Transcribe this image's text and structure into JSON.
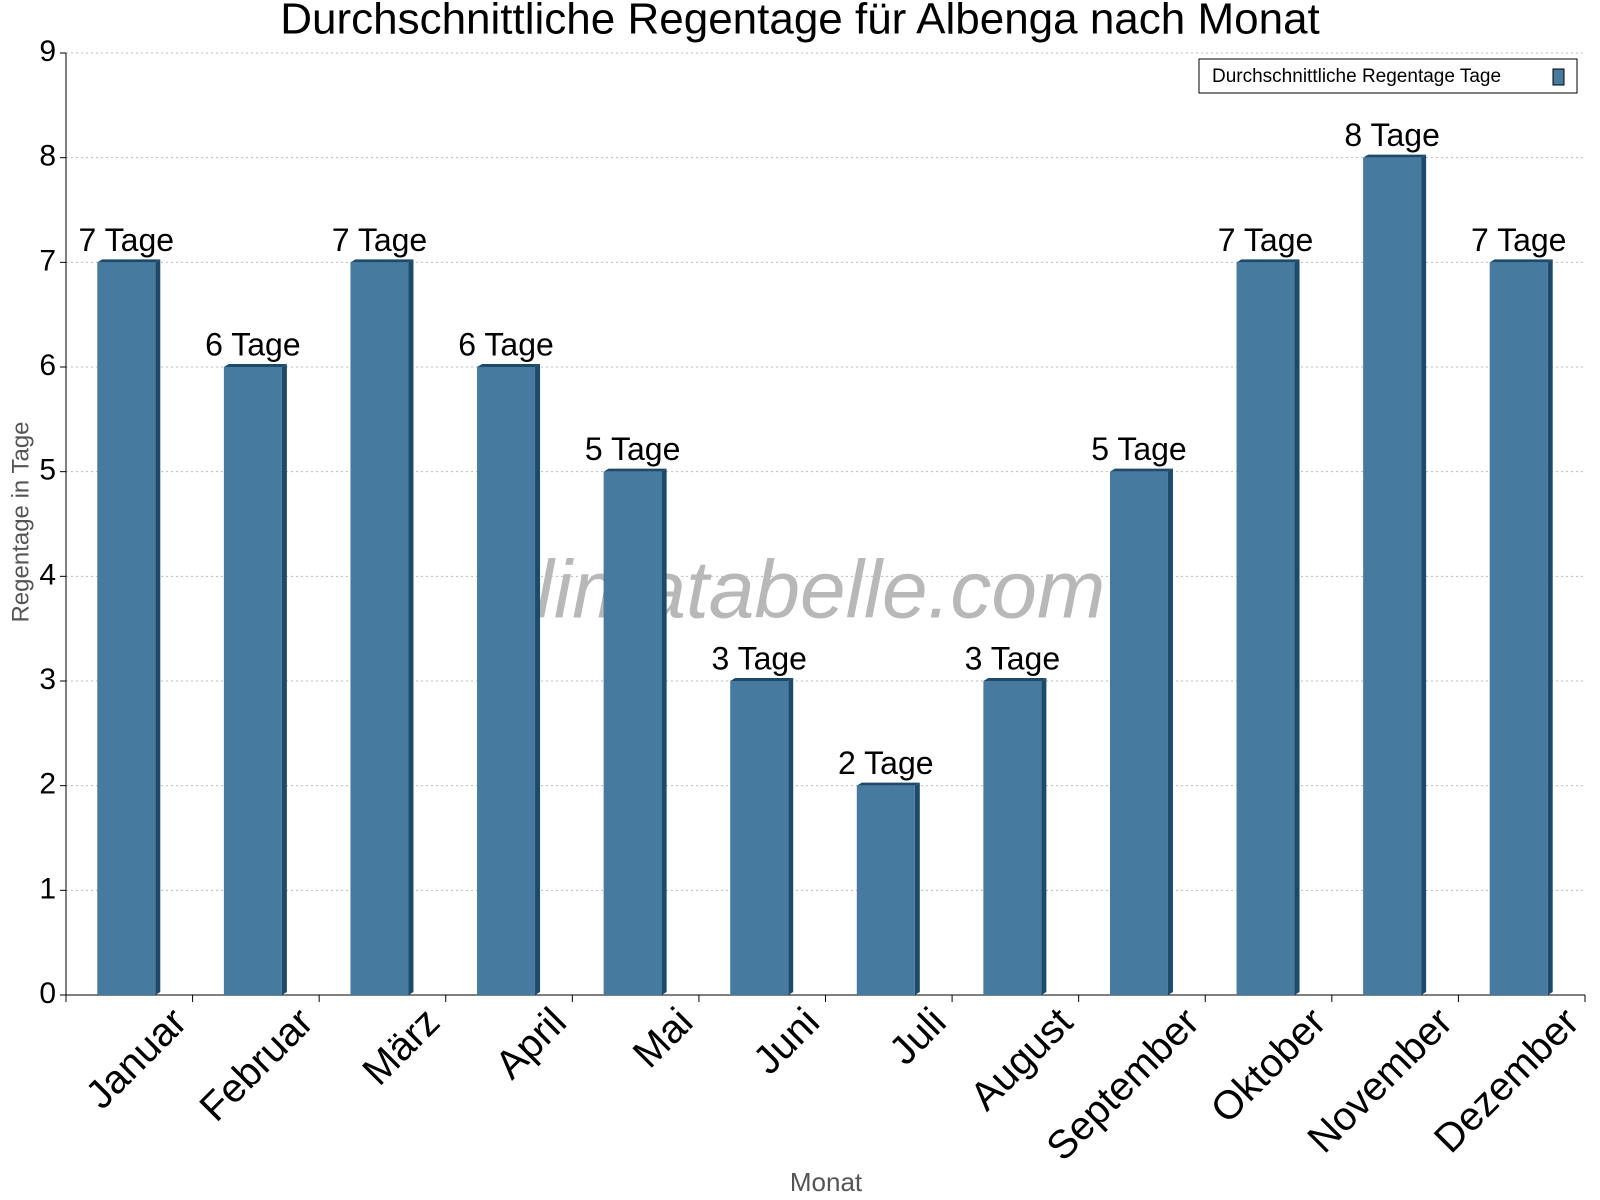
{
  "chart_data": {
    "type": "bar",
    "title": "Durchschnittliche Regentage für Albenga nach Monat",
    "watermark": "klimatabelle.com",
    "x_label": "Monat",
    "y_label": "Regentage in Tage",
    "categories": [
      "Januar",
      "Februar",
      "März",
      "April",
      "Mai",
      "Juni",
      "Juli",
      "August",
      "September",
      "Oktober",
      "November",
      "Dezember"
    ],
    "series": [
      {
        "name": "Durchschnittliche Regentage Tage",
        "color": "#467a9e",
        "values": [
          7,
          6,
          7,
          6,
          5,
          3,
          2,
          3,
          5,
          7,
          8,
          7
        ],
        "value_labels": [
          "7 Tage",
          "6 Tage",
          "7 Tage",
          "6 Tage",
          "5 Tage",
          "3 Tage",
          "2 Tage",
          "3 Tage",
          "5 Tage",
          "7 Tage",
          "8 Tage",
          "7 Tage"
        ]
      }
    ],
    "ylim": [
      0,
      9
    ],
    "yticks": [
      0,
      1,
      2,
      3,
      4,
      5,
      6,
      7,
      8,
      9
    ],
    "grid": true,
    "legend": "top-right"
  }
}
